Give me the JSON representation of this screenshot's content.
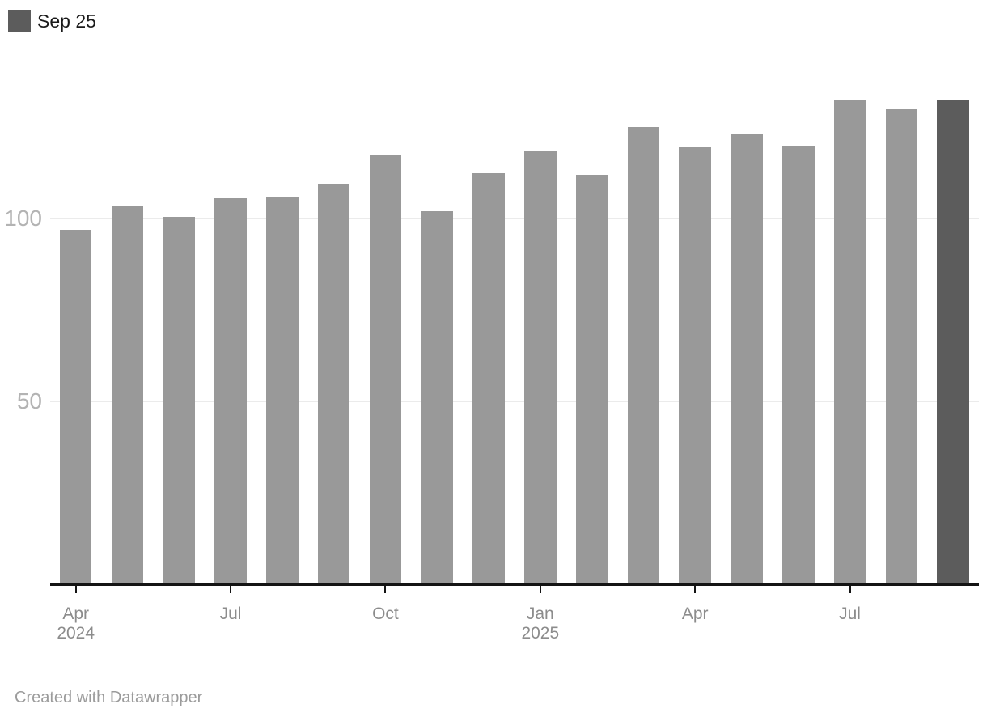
{
  "legend": {
    "label": "Sep 25",
    "swatch_color": "#5c5c5c"
  },
  "footer": {
    "credit": "Created with Datawrapper"
  },
  "chart_data": {
    "type": "bar",
    "title": "",
    "xlabel": "",
    "ylabel": "",
    "categories": [
      "Apr 2024",
      "May 2024",
      "Jun 2024",
      "Jul 2024",
      "Aug 2024",
      "Sep 2024",
      "Oct 2024",
      "Nov 2024",
      "Dec 2024",
      "Jan 2025",
      "Feb 2025",
      "Mar 2025",
      "Apr 2025",
      "May 2025",
      "Jun 2025",
      "Jul 2025",
      "Aug 2025",
      "Sep 2025"
    ],
    "values": [
      97,
      103.5,
      100.5,
      105.5,
      106,
      109.5,
      117.5,
      102,
      112.5,
      118.5,
      112,
      125,
      119.5,
      123,
      120,
      132.5,
      130,
      132.5
    ],
    "highlight_index": 17,
    "highlight_label": "Sep 25",
    "bar_color": "#999999",
    "highlight_color": "#5c5c5c",
    "ylim": [
      0,
      140
    ],
    "y_ticks": [
      50,
      100
    ],
    "grid_on": true,
    "gridline_color": "#ebebeb",
    "axis_color": "#141414",
    "legend_position": "top-left",
    "x_ticks": [
      {
        "index": 0,
        "label": "Apr",
        "sublabel": "2024"
      },
      {
        "index": 3,
        "label": "Jul",
        "sublabel": ""
      },
      {
        "index": 6,
        "label": "Oct",
        "sublabel": ""
      },
      {
        "index": 9,
        "label": "Jan",
        "sublabel": "2025"
      },
      {
        "index": 12,
        "label": "Apr",
        "sublabel": ""
      },
      {
        "index": 15,
        "label": "Jul",
        "sublabel": ""
      }
    ]
  }
}
